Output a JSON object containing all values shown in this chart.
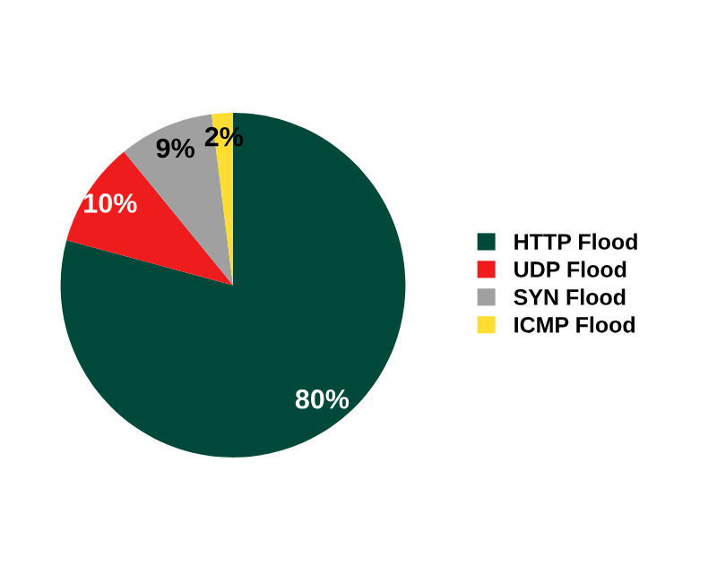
{
  "chart_data": {
    "type": "pie",
    "categories": [
      "HTTP Flood",
      "UDP Flood",
      "SYN Flood",
      "ICMP Flood"
    ],
    "values": [
      80,
      10,
      9,
      2
    ],
    "colors": [
      "#00483a",
      "#ee1c1c",
      "#a0a0a0",
      "#ffdd33"
    ],
    "value_labels": [
      "80%",
      "10%",
      "9%",
      "2%"
    ],
    "legend": "right"
  }
}
